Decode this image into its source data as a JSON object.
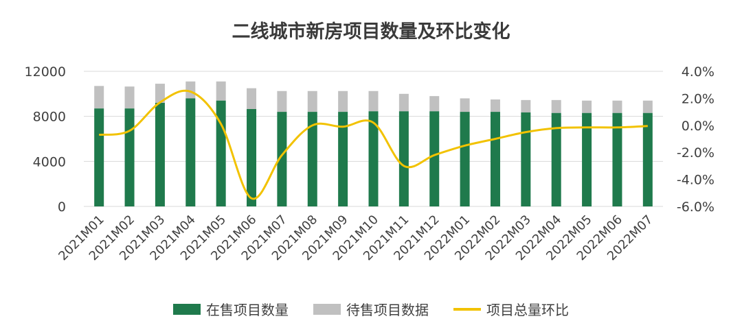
{
  "chart_data": {
    "type": "bar",
    "title": "二线城市新房项目数量及环比变化",
    "categories": [
      "2021M01",
      "2021M02",
      "2021M03",
      "2021M04",
      "2021M05",
      "2021M06",
      "2021M07",
      "2021M08",
      "2021M09",
      "2021M10",
      "2021M11",
      "2021M12",
      "2022M01",
      "2022M02",
      "2022M03",
      "2022M04",
      "2022M05",
      "2022M06",
      "2022M07"
    ],
    "series": [
      {
        "name": "在售项目数量",
        "type": "bar",
        "stacked": true,
        "color": "#1f7a4c",
        "values": [
          8700,
          8700,
          9200,
          9600,
          9400,
          8650,
          8400,
          8400,
          8400,
          8450,
          8450,
          8450,
          8400,
          8400,
          8350,
          8300,
          8300,
          8300,
          8300
        ]
      },
      {
        "name": "待售项目数据",
        "type": "bar",
        "stacked": true,
        "color": "#c0c0c0",
        "values": [
          2000,
          1950,
          1700,
          1500,
          1700,
          1850,
          1850,
          1850,
          1850,
          1800,
          1550,
          1350,
          1200,
          1100,
          1100,
          1150,
          1100,
          1100,
          1100
        ]
      },
      {
        "name": "项目总量环比",
        "type": "line",
        "axis": "right",
        "color": "#f2c200",
        "values": [
          -0.7,
          -0.4,
          1.7,
          2.5,
          0.1,
          -5.4,
          -2.2,
          0.0,
          -0.1,
          0.2,
          -3.0,
          -2.2,
          -1.5,
          -1.0,
          -0.5,
          -0.2,
          -0.15,
          -0.15,
          -0.05
        ]
      }
    ],
    "y_left": {
      "ticks": [
        "0",
        "4000",
        "8000",
        "12000"
      ],
      "ylim": [
        0,
        12000
      ]
    },
    "y_right": {
      "ticks": [
        "-6.0%",
        "-4.0%",
        "-2.0%",
        "0.0%",
        "2.0%",
        "4.0%"
      ],
      "ylim": [
        -6,
        4
      ]
    },
    "grid": true,
    "legend_position": "bottom"
  },
  "legend": {
    "onsale": "在售项目数量",
    "pending": "待售项目数据",
    "mom": "项目总量环比"
  },
  "colors": {
    "green": "#1f7a4c",
    "gray": "#c0c0c0",
    "gold": "#f2c200",
    "grid": "#d9d9d9"
  }
}
